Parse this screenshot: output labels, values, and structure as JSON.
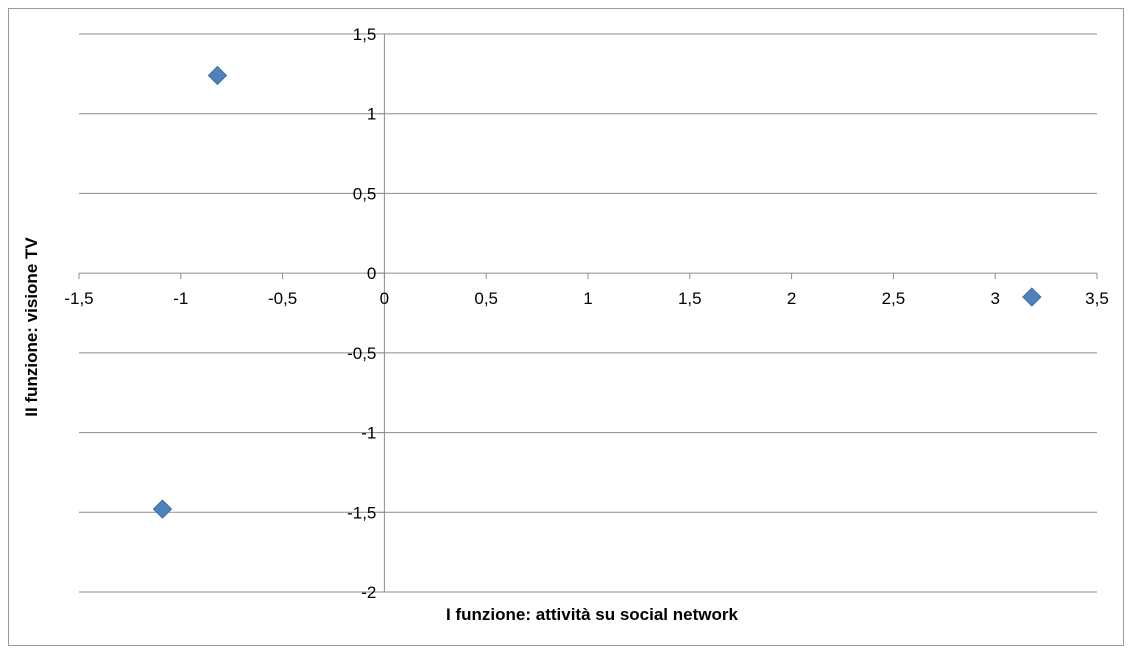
{
  "chart_data": {
    "type": "scatter",
    "title": "",
    "xlabel": "I funzione: attività su social network",
    "ylabel": "II funzione: visione TV",
    "xlim": [
      -1.5,
      3.5
    ],
    "ylim": [
      -2,
      1.5
    ],
    "x_ticks": [
      -1.5,
      -1,
      -0.5,
      0,
      0.5,
      1,
      1.5,
      2,
      2.5,
      3,
      3.5
    ],
    "y_ticks": [
      -2,
      -1.5,
      -1,
      -0.5,
      0,
      0.5,
      1,
      1.5
    ],
    "x_tick_labels": [
      "-1,5",
      "-1",
      "-0,5",
      "0",
      "0,5",
      "1",
      "1,5",
      "2",
      "2,5",
      "3",
      "3,5"
    ],
    "y_tick_labels": [
      "-2",
      "-1,5",
      "-1",
      "-0,5",
      "0",
      "0,5",
      "1",
      "1,5"
    ],
    "grid": "horizontal",
    "marker": "diamond",
    "marker_color": "#4f81bd",
    "series": [
      {
        "points": [
          {
            "x": -0.82,
            "y": 1.24
          },
          {
            "x": -1.09,
            "y": -1.48
          },
          {
            "x": 3.18,
            "y": -0.15
          }
        ]
      }
    ]
  }
}
